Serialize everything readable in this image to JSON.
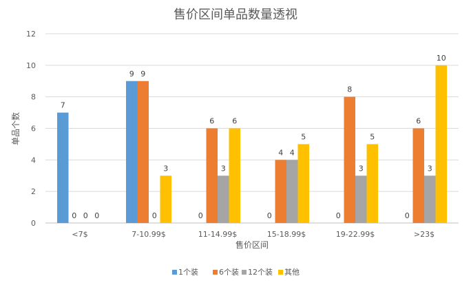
{
  "chart_data": {
    "type": "bar",
    "title": "售价区间单品数量透视",
    "xlabel": "售价区间",
    "ylabel": "单品个数",
    "ylim": [
      0,
      12
    ],
    "yticks": [
      "0",
      "2",
      "4",
      "6",
      "8",
      "10",
      "12"
    ],
    "grid": true,
    "legend_position": "bottom",
    "categories": [
      "<7$",
      "7-10.99$",
      "11-14.99$",
      "15-18.99$",
      "19-22.99$",
      ">23$"
    ],
    "series": [
      {
        "name": "1个装",
        "color": "#5B9BD5",
        "values": [
          7,
          9,
          0,
          0,
          0,
          0
        ]
      },
      {
        "name": "6个装",
        "color": "#ED7D31",
        "values": [
          0,
          9,
          6,
          4,
          8,
          6
        ]
      },
      {
        "name": "12个装",
        "color": "#A5A5A5",
        "values": [
          0,
          0,
          3,
          4,
          3,
          3
        ]
      },
      {
        "name": "其他",
        "color": "#FFC000",
        "values": [
          0,
          3,
          6,
          5,
          5,
          10
        ]
      }
    ]
  }
}
